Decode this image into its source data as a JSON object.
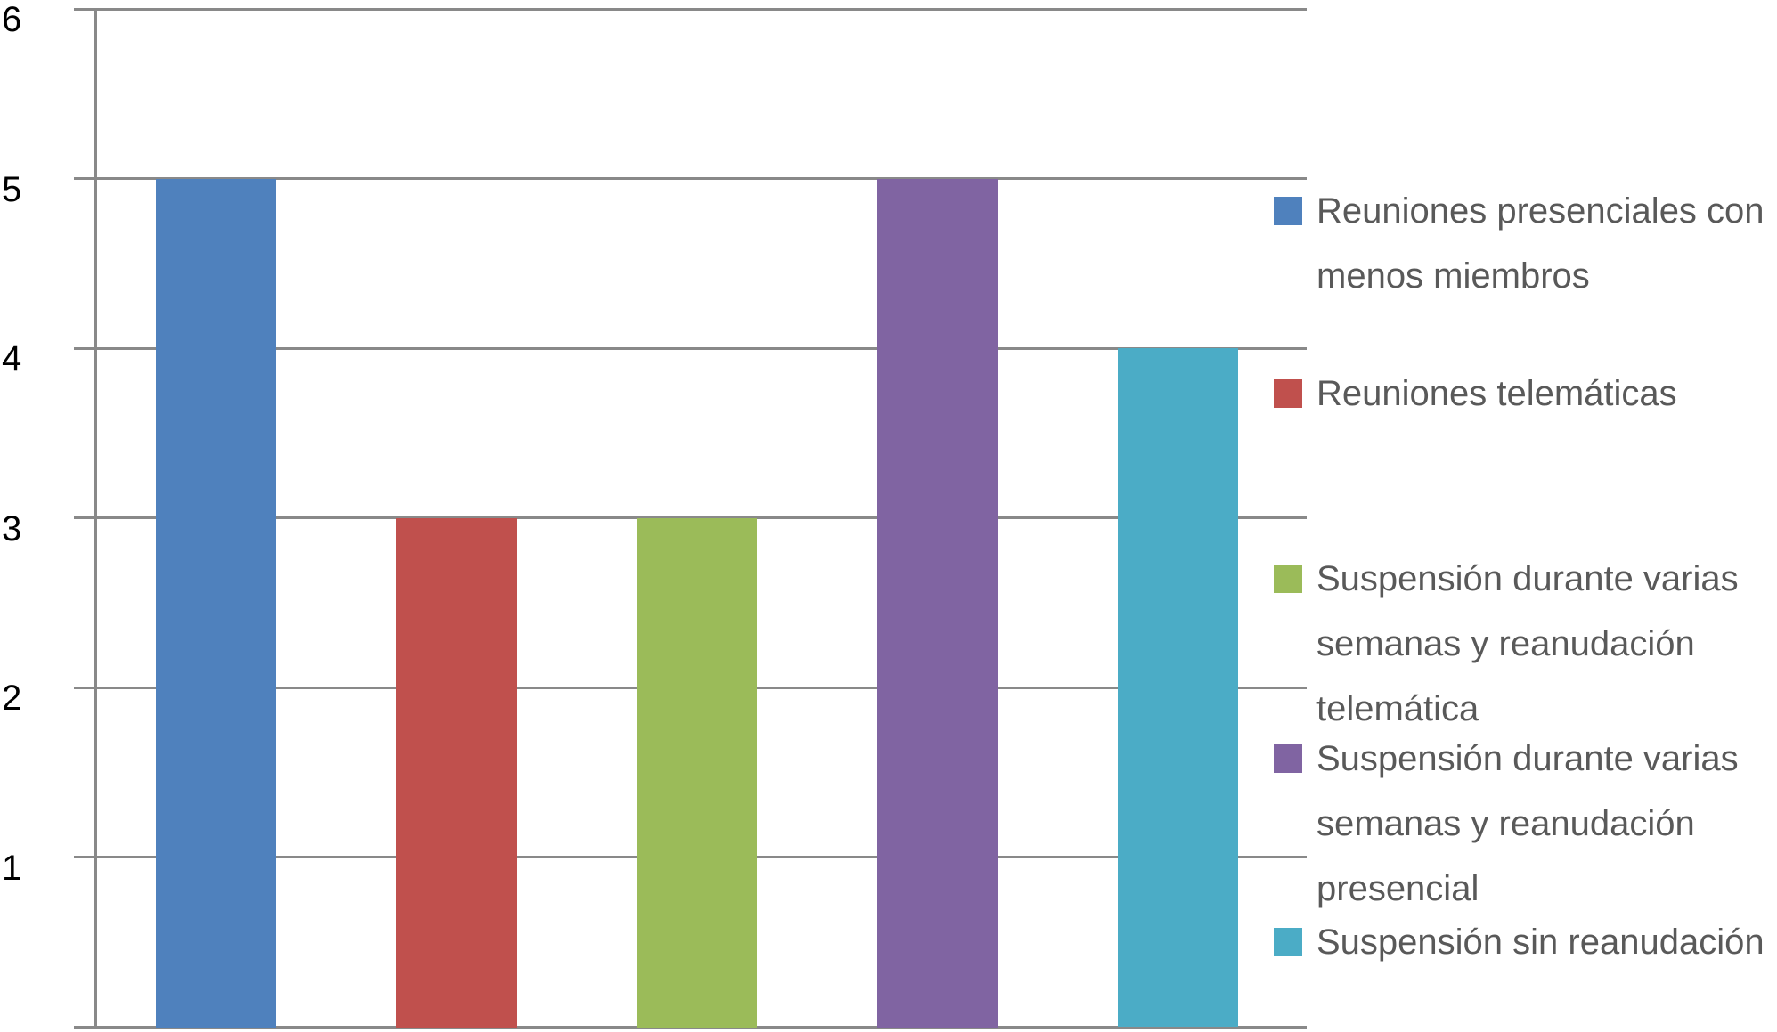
{
  "chart_data": {
    "type": "bar",
    "title": "",
    "xlabel": "",
    "ylabel": "",
    "ylim": [
      0,
      6
    ],
    "y_ticks": [
      "6",
      "5",
      "4",
      "3",
      "2",
      "1"
    ],
    "grid": true,
    "legend_position": "right",
    "categories": [
      "Reuniones presenciales con menos miembros",
      "Reuniones telemáticas",
      "Suspensión durante varias semanas y reanudación telemática",
      "Suspensión durante varias semanas y reanudación presencial",
      "Suspensión sin reanudación"
    ],
    "series": [
      {
        "name": "Reuniones presenciales con menos miembros",
        "value": 5,
        "color": "#4F81BD"
      },
      {
        "name": "Reuniones telemáticas",
        "value": 3,
        "color": "#C0504D"
      },
      {
        "name": "Suspensión durante varias semanas y reanudación telemática",
        "value": 3,
        "color": "#9BBB59"
      },
      {
        "name": "Suspensión durante varias semanas y reanudación presencial",
        "value": 5,
        "color": "#8064A2"
      },
      {
        "name": "Suspensión sin reanudación",
        "value": 4,
        "color": "#4BACC6"
      }
    ]
  },
  "legend": {
    "entries": [
      {
        "label": "Reuniones presenciales con\nmenos miembros",
        "color": "#4F81BD"
      },
      {
        "label": "Reuniones telemáticas",
        "color": "#C0504D"
      },
      {
        "label": "Suspensión durante varias\nsemanas y reanudación\ntelemática",
        "color": "#9BBB59"
      },
      {
        "label": "Suspensión durante varias\nsemanas y reanudación\npresencial",
        "color": "#8064A2"
      },
      {
        "label": "Suspensión sin reanudación",
        "color": "#4BACC6"
      }
    ]
  },
  "colors": {
    "gridline": "#898989",
    "axis_line": "#898989",
    "axis_label_text": "#000000",
    "legend_text": "#595959",
    "background": "#FFFFFF"
  }
}
